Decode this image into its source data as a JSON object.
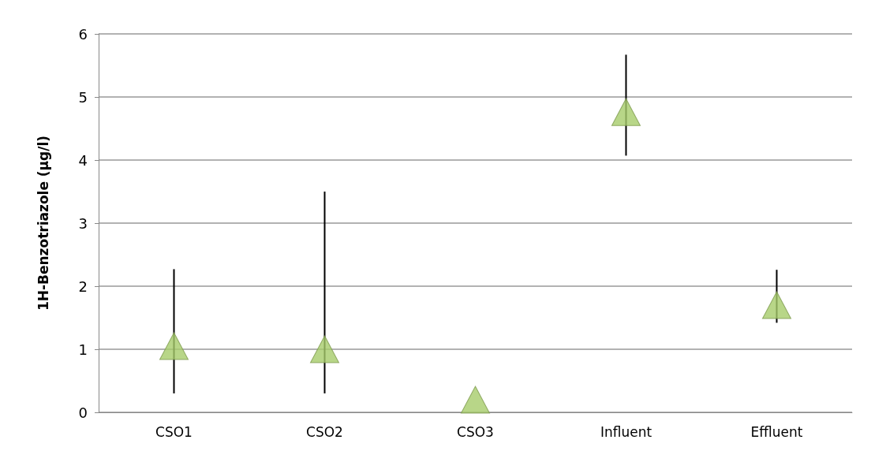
{
  "chart_data": {
    "type": "scatter",
    "ylabel": "1H-Benzotriazole (µg/l)",
    "categories": [
      "CSO1",
      "CSO2",
      "CSO3",
      "Influent",
      "Effluent"
    ],
    "values": [
      1.05,
      1.0,
      0.2,
      4.76,
      1.7
    ],
    "errors": [
      [
        0.3,
        2.27
      ],
      [
        0.3,
        3.5
      ],
      null,
      [
        4.07,
        5.67
      ],
      [
        1.42,
        2.26
      ]
    ],
    "color": "#a6cc6a",
    "marker": "triangle",
    "ylim": [
      0,
      6
    ],
    "yticks": [
      0,
      1,
      2,
      3,
      4,
      5,
      6
    ],
    "grid": "y"
  }
}
